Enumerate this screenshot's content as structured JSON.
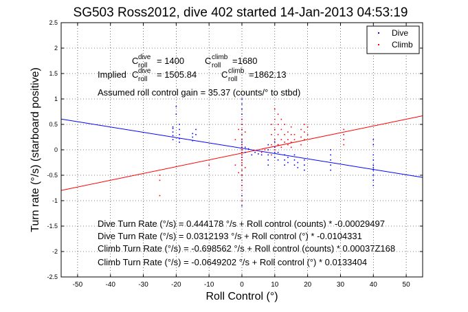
{
  "chart_data": {
    "type": "scatter",
    "title": "SG503 Ross2012, dive 402 started 14-Jan-2013 04:53:19",
    "xlabel": "Roll Control (°)",
    "ylabel": "Turn rate (°/s) (starboard positive)",
    "xlim": [
      -55,
      55
    ],
    "ylim": [
      -2.5,
      2.5
    ],
    "xticks": [
      -50,
      -40,
      -30,
      -20,
      -10,
      0,
      10,
      20,
      30,
      40,
      50
    ],
    "yticks": [
      -2.5,
      -2,
      -1.5,
      -1,
      -0.5,
      0,
      0.5,
      1,
      1.5,
      2,
      2.5
    ],
    "grid": true,
    "legend": {
      "placement": "top-right",
      "entries": [
        "Dive",
        "Climb"
      ]
    },
    "colors": {
      "dive": "#0000ff",
      "climb": "#ff0000"
    },
    "series": [
      {
        "name": "Dive",
        "color": "#0000ff",
        "points": [
          [
            -21,
            0.45
          ],
          [
            -21,
            0.35
          ],
          [
            -21,
            0.28
          ],
          [
            -21,
            0.2
          ],
          [
            -21,
            0.42
          ],
          [
            -19,
            0.5
          ],
          [
            -19,
            0.4
          ],
          [
            -19,
            0.3
          ],
          [
            -19,
            0.22
          ],
          [
            -19,
            0.15
          ],
          [
            -15,
            0.32
          ],
          [
            -15,
            0.25
          ],
          [
            -15,
            0.18
          ],
          [
            -14,
            0.4
          ],
          [
            -14,
            0.3
          ],
          [
            -20,
            0.85
          ],
          [
            -20,
            0.7
          ],
          [
            0,
            1.0
          ],
          [
            0,
            0.8
          ],
          [
            0,
            0.6
          ],
          [
            0,
            0.5
          ],
          [
            0,
            0.4
          ],
          [
            0,
            0.3
          ],
          [
            0,
            0.2
          ],
          [
            0,
            0.15
          ],
          [
            0,
            0.1
          ],
          [
            0,
            0.05
          ],
          [
            0,
            0.0
          ],
          [
            0,
            -0.05
          ],
          [
            0,
            -0.1
          ],
          [
            0,
            -0.15
          ],
          [
            0,
            -0.2
          ],
          [
            0,
            -0.3
          ],
          [
            0,
            -0.4
          ],
          [
            0,
            -0.5
          ],
          [
            0,
            -0.6
          ],
          [
            0,
            -0.7
          ],
          [
            0,
            -0.9
          ],
          [
            0,
            -1.1
          ],
          [
            0,
            0.9
          ],
          [
            0,
            0.7
          ],
          [
            1,
            0.05
          ],
          [
            1,
            -0.05
          ],
          [
            2,
            0.02
          ],
          [
            3,
            -0.1
          ],
          [
            4,
            -0.05
          ],
          [
            5,
            -0.08
          ],
          [
            6,
            -0.1
          ],
          [
            8,
            0.1
          ],
          [
            8,
            0.0
          ],
          [
            8,
            -0.1
          ],
          [
            8,
            -0.2
          ],
          [
            8,
            -0.3
          ],
          [
            10,
            0.15
          ],
          [
            10,
            0.05
          ],
          [
            10,
            -0.05
          ],
          [
            10,
            -0.15
          ],
          [
            11,
            0.1
          ],
          [
            11,
            -0.05
          ],
          [
            11,
            -0.2
          ],
          [
            13,
            -0.1
          ],
          [
            13,
            -0.2
          ],
          [
            13,
            -0.3
          ],
          [
            14,
            -0.15
          ],
          [
            14,
            -0.25
          ],
          [
            16,
            -0.1
          ],
          [
            16,
            -0.2
          ],
          [
            16,
            -0.3
          ],
          [
            17,
            -0.25
          ],
          [
            17,
            -0.35
          ],
          [
            19,
            -0.3
          ],
          [
            19,
            -0.4
          ],
          [
            19,
            -0.2
          ],
          [
            27,
            -0.1
          ],
          [
            27,
            -0.2
          ],
          [
            27,
            -0.3
          ],
          [
            27,
            -0.4
          ],
          [
            27,
            0.0
          ],
          [
            40,
            -0.1
          ],
          [
            40,
            -0.2
          ],
          [
            40,
            -0.3
          ],
          [
            40,
            -0.4
          ],
          [
            40,
            -0.5
          ],
          [
            40,
            -0.6
          ],
          [
            40,
            -0.7
          ],
          [
            40,
            -0.35
          ],
          [
            40,
            0.1
          ],
          [
            40,
            0.2
          ]
        ]
      },
      {
        "name": "Climb",
        "color": "#ff0000",
        "points": [
          [
            -25,
            -0.5
          ],
          [
            -25,
            -0.6
          ],
          [
            -25,
            -0.9
          ],
          [
            -10,
            -0.3
          ],
          [
            0,
            0.6
          ],
          [
            0,
            0.5
          ],
          [
            0,
            0.4
          ],
          [
            0,
            0.3
          ],
          [
            0,
            0.2
          ],
          [
            0,
            0.1
          ],
          [
            0,
            0.05
          ],
          [
            0,
            0.0
          ],
          [
            0,
            -0.05
          ],
          [
            0,
            -0.1
          ],
          [
            0,
            -0.15
          ],
          [
            0,
            -0.2
          ],
          [
            0,
            -0.25
          ],
          [
            0,
            -0.3
          ],
          [
            0,
            -0.4
          ],
          [
            0,
            -0.5
          ],
          [
            0,
            -0.6
          ],
          [
            0,
            -0.7
          ],
          [
            0,
            -0.8
          ],
          [
            0,
            -1.0
          ],
          [
            1,
            0.35
          ],
          [
            1,
            -0.35
          ],
          [
            -1,
            0.4
          ],
          [
            -1,
            -0.45
          ],
          [
            -2,
            -0.3
          ],
          [
            -2,
            0.2
          ],
          [
            6,
            -0.05
          ],
          [
            7,
            0.0
          ],
          [
            9,
            0.5
          ],
          [
            9,
            0.3
          ],
          [
            9,
            0.1
          ],
          [
            9,
            -0.1
          ],
          [
            10,
            0.8
          ],
          [
            10,
            0.6
          ],
          [
            10,
            0.4
          ],
          [
            10,
            0.2
          ],
          [
            10,
            0.0
          ],
          [
            11,
            0.7
          ],
          [
            11,
            0.5
          ],
          [
            11,
            0.3
          ],
          [
            11,
            0.1
          ],
          [
            12,
            0.6
          ],
          [
            12,
            0.4
          ],
          [
            12,
            0.2
          ],
          [
            12,
            0.05
          ],
          [
            13,
            0.5
          ],
          [
            13,
            0.3
          ],
          [
            13,
            0.15
          ],
          [
            14,
            0.35
          ],
          [
            14,
            0.2
          ],
          [
            14,
            0.1
          ],
          [
            15,
            0.45
          ],
          [
            15,
            0.3
          ],
          [
            15,
            0.15
          ],
          [
            15,
            0.05
          ],
          [
            16,
            0.3
          ],
          [
            16,
            0.2
          ],
          [
            18,
            0.4
          ],
          [
            18,
            0.25
          ],
          [
            18,
            0.1
          ],
          [
            19,
            0.5
          ],
          [
            19,
            0.35
          ],
          [
            19,
            0.2
          ],
          [
            20,
            0.45
          ],
          [
            20,
            0.3
          ],
          [
            31,
            0.4
          ],
          [
            31,
            0.3
          ],
          [
            31,
            0.2
          ],
          [
            31,
            0.1
          ]
        ]
      }
    ],
    "fit_lines": [
      {
        "name": "Dive fit",
        "color": "#0000ff",
        "slope": -0.0104331,
        "intercept": 0.0312193
      },
      {
        "name": "Climb fit",
        "color": "#ff0000",
        "slope": 0.0133404,
        "intercept": -0.0649202
      }
    ],
    "annotations": {
      "c_dive": {
        "symbol": "C",
        "sup": "dive",
        "sub": "roll",
        "value": "= 1400"
      },
      "c_climb": {
        "symbol": "C",
        "sup": "climb",
        "sub": "roll",
        "value": "=1680"
      },
      "implied_prefix": "Implied ",
      "implied_dive": {
        "symbol": "C",
        "sup": "dive",
        "sub": "roll",
        "value": "= 1505.84"
      },
      "implied_climb": {
        "symbol": "C",
        "sup": "climb",
        "sub": "roll",
        "value": "=1862.13"
      },
      "gain": "Assumed roll control gain = 35.37 (counts/° to stbd)",
      "eq1": "Dive Turn Rate (°/s) = 0.444178 °/s + Roll control (counts) * -0.00029497",
      "eq2": "Dive Turn Rate (°/s) = 0.0312193 °/s + Roll control (°) * -0.0104331",
      "eq3": "Climb Turn Rate (°/s) = -0.698562 °/s + Roll control (counts) * 0.00037Z168",
      "eq4": "Climb Turn Rate (°/s) = -0.0649202 °/s + Roll control (°) * 0.0133404"
    }
  }
}
